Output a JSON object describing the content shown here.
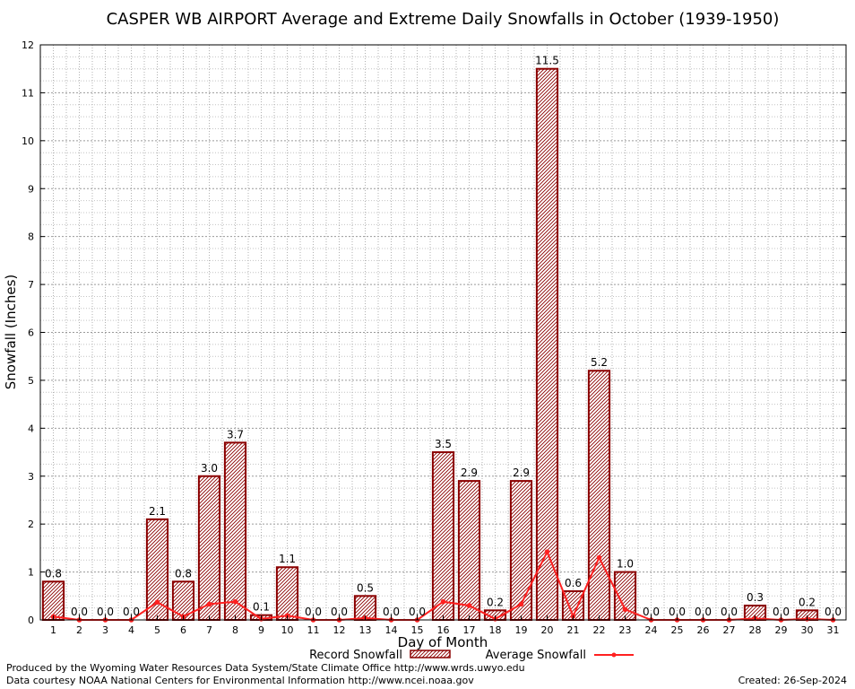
{
  "chart_data": {
    "type": "bar",
    "title": "CASPER WB AIRPORT Average and Extreme Daily Snowfalls in October (1939-1950)",
    "xlabel": "Day of Month",
    "ylabel": "Snowfall (Inches)",
    "ylim": [
      0,
      12
    ],
    "yticks": [
      "0",
      "1",
      "2",
      "3",
      "4",
      "5",
      "6",
      "7",
      "8",
      "9",
      "10",
      "11",
      "12"
    ],
    "categories": [
      "1",
      "2",
      "3",
      "4",
      "5",
      "6",
      "7",
      "8",
      "9",
      "10",
      "11",
      "12",
      "13",
      "14",
      "15",
      "16",
      "17",
      "18",
      "19",
      "20",
      "21",
      "22",
      "23",
      "24",
      "25",
      "26",
      "27",
      "28",
      "29",
      "30",
      "31"
    ],
    "record_labels": [
      "0.8",
      "0.0",
      "0.0",
      "0.0",
      "2.1",
      "0.8",
      "3.0",
      "3.7",
      "0.1",
      "1.1",
      "0.0",
      "0.0",
      "0.5",
      "0.0",
      "0.0",
      "3.5",
      "2.9",
      "0.2",
      "2.9",
      "11.5",
      "0.6",
      "5.2",
      "1.0",
      "0.0",
      "0.0",
      "0.0",
      "0.0",
      "0.3",
      "0.0",
      "0.2",
      "0.0"
    ],
    "series": [
      {
        "name": "Record Snowfall",
        "type": "bar",
        "color": "#8b0000",
        "values": [
          0.8,
          0.0,
          0.0,
          0.0,
          2.1,
          0.8,
          3.0,
          3.7,
          0.1,
          1.1,
          0.0,
          0.0,
          0.5,
          0.0,
          0.0,
          3.5,
          2.9,
          0.2,
          2.9,
          11.5,
          0.6,
          5.2,
          1.0,
          0.0,
          0.0,
          0.0,
          0.0,
          0.3,
          0.0,
          0.2,
          0.0
        ]
      },
      {
        "name": "Average Snowfall",
        "type": "line",
        "color": "#ff2020",
        "values": [
          0.07,
          0.0,
          0.0,
          0.0,
          0.37,
          0.07,
          0.33,
          0.38,
          0.02,
          0.09,
          0.0,
          0.0,
          0.04,
          0.0,
          0.0,
          0.38,
          0.3,
          0.02,
          0.33,
          1.42,
          0.08,
          1.3,
          0.22,
          0.0,
          0.0,
          0.0,
          0.0,
          0.03,
          0.0,
          0.02,
          0.0
        ]
      }
    ],
    "grid": true,
    "legend": "bottom"
  },
  "footer": {
    "left_line1": "Produced by the Wyoming Water Resources Data System/State Climate Office http://www.wrds.uwyo.edu",
    "left_line2": "Data courtesy NOAA National Centers for Environmental Information http://www.ncei.noaa.gov",
    "created": "Created:  26-Sep-2024"
  }
}
